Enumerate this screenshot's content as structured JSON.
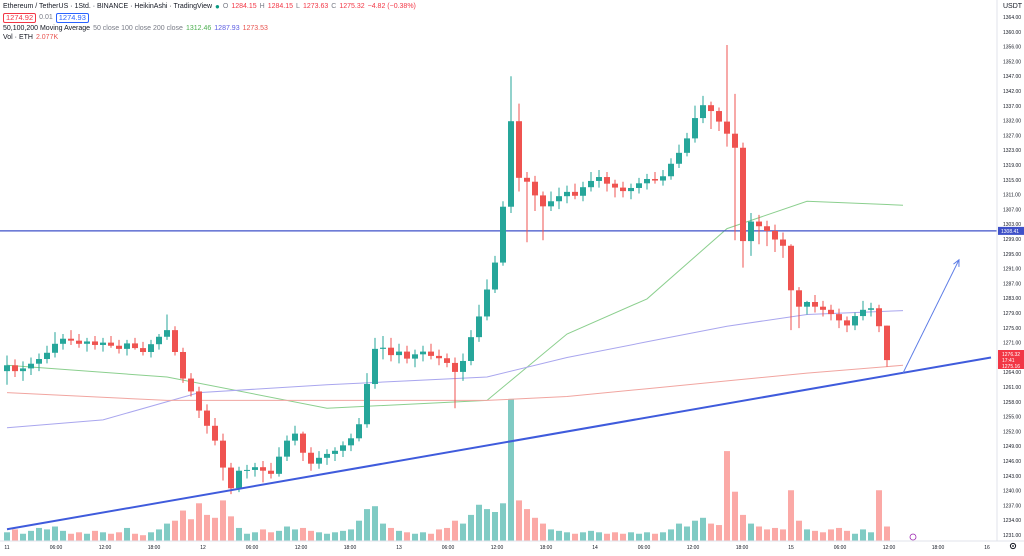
{
  "header": {
    "symbol_title": "Ethereum / TetherUS · 1Std. · BINANCE · HeikinAshi · TradingView",
    "o_label": "O",
    "o_value": "1284.15",
    "h_label": "H",
    "h_value": "1284.15",
    "l_label": "L",
    "l_value": "1273.63",
    "c_label": "C",
    "c_value": "1275.32",
    "change": "−4.82 (−0.38%)",
    "sell_price": "1274.92",
    "spread": "0.01",
    "buy_price": "1274.93",
    "ma_label": "50,100,200 Moving Average",
    "ma_params": "50 close 100 close 200 close",
    "ma50_value": "1312.46",
    "ma100_value": "1287.93",
    "ma200_value": "1273.53",
    "vol_label": "Vol · ETH",
    "vol_value": "2.077K"
  },
  "price_axis": {
    "currency": "USDT",
    "ticks": [
      "1364.00",
      "1360.00",
      "1356.00",
      "1352.00",
      "1347.00",
      "1342.00",
      "1337.00",
      "1332.00",
      "1327.00",
      "1323.00",
      "1319.00",
      "1315.00",
      "1311.00",
      "1307.00",
      "1303.00",
      "1299.00",
      "1295.00",
      "1291.00",
      "1287.00",
      "1283.00",
      "1279.00",
      "1275.00",
      "1271.00",
      "1267.00",
      "1264.00",
      "1261.00",
      "1258.00",
      "1255.00",
      "1252.00",
      "1249.00",
      "1246.00",
      "1243.00",
      "1240.00",
      "1237.00",
      "1234.00",
      "1231.00"
    ],
    "line_label": "1308.41",
    "price_tags": [
      "1276.32",
      "17:41",
      "1275.16"
    ]
  },
  "time_axis": {
    "ticks": [
      "11",
      "06:00",
      "12:00",
      "18:00",
      "12",
      "06:00",
      "12:00",
      "18:00",
      "13",
      "06:00",
      "12:00",
      "18:00",
      "14",
      "06:00",
      "12:00",
      "18:00",
      "15",
      "06:00",
      "12:00",
      "18:00",
      "16"
    ]
  },
  "footer": {
    "gear_icon": "gear-icon"
  },
  "colors": {
    "up": "#26a69a",
    "down": "#ef5350",
    "vol_up": "#80cbc4",
    "vol_down": "#fba9a6",
    "ma50": "#8bcf8e",
    "ma100": "#a9a6ee",
    "ma200": "#f1a5a0",
    "trendline": "#3f5bdc",
    "hline": "#3f51c8"
  },
  "chart_data": {
    "type": "candlestick",
    "title": "Ethereum / TetherUS · 1Std. · BINANCE · HeikinAshi",
    "ylabel": "USDT",
    "ylim": [
      1229,
      1366
    ],
    "candles": [
      {
        "o": 1272.5,
        "h": 1276.5,
        "l": 1269.0,
        "c": 1274.0,
        "v": 6
      },
      {
        "o": 1274.0,
        "h": 1275.5,
        "l": 1271.0,
        "c": 1272.5,
        "v": 8
      },
      {
        "o": 1272.5,
        "h": 1275.0,
        "l": 1270.0,
        "c": 1273.2,
        "v": 5
      },
      {
        "o": 1273.2,
        "h": 1276.0,
        "l": 1271.5,
        "c": 1274.4,
        "v": 7
      },
      {
        "o": 1274.4,
        "h": 1277.0,
        "l": 1272.5,
        "c": 1275.6,
        "v": 9
      },
      {
        "o": 1275.6,
        "h": 1279.0,
        "l": 1274.5,
        "c": 1277.2,
        "v": 8
      },
      {
        "o": 1277.2,
        "h": 1282.5,
        "l": 1276.0,
        "c": 1279.5,
        "v": 10
      },
      {
        "o": 1279.5,
        "h": 1282.0,
        "l": 1278.0,
        "c": 1280.8,
        "v": 7
      },
      {
        "o": 1280.8,
        "h": 1283.0,
        "l": 1279.2,
        "c": 1280.3,
        "v": 5
      },
      {
        "o": 1280.3,
        "h": 1282.0,
        "l": 1278.5,
        "c": 1279.5,
        "v": 6
      },
      {
        "o": 1279.5,
        "h": 1281.0,
        "l": 1277.5,
        "c": 1280.1,
        "v": 5
      },
      {
        "o": 1280.1,
        "h": 1281.5,
        "l": 1278.0,
        "c": 1279.2,
        "v": 7
      },
      {
        "o": 1279.2,
        "h": 1281.0,
        "l": 1277.5,
        "c": 1279.8,
        "v": 6
      },
      {
        "o": 1279.8,
        "h": 1281.5,
        "l": 1278.5,
        "c": 1279.0,
        "v": 5
      },
      {
        "o": 1279.0,
        "h": 1280.5,
        "l": 1277.0,
        "c": 1278.2,
        "v": 6
      },
      {
        "o": 1278.2,
        "h": 1280.5,
        "l": 1276.5,
        "c": 1279.6,
        "v": 9
      },
      {
        "o": 1279.6,
        "h": 1281.0,
        "l": 1278.0,
        "c": 1278.4,
        "v": 5
      },
      {
        "o": 1278.4,
        "h": 1280.0,
        "l": 1276.5,
        "c": 1277.4,
        "v": 4
      },
      {
        "o": 1277.4,
        "h": 1280.5,
        "l": 1276.0,
        "c": 1279.4,
        "v": 6
      },
      {
        "o": 1279.4,
        "h": 1282.0,
        "l": 1278.0,
        "c": 1281.3,
        "v": 8
      },
      {
        "o": 1281.3,
        "h": 1287.0,
        "l": 1280.5,
        "c": 1283.0,
        "v": 12
      },
      {
        "o": 1283.0,
        "h": 1284.0,
        "l": 1276.5,
        "c": 1277.4,
        "v": 14
      },
      {
        "o": 1277.4,
        "h": 1278.5,
        "l": 1269.5,
        "c": 1270.6,
        "v": 21
      },
      {
        "o": 1270.6,
        "h": 1272.0,
        "l": 1266.0,
        "c": 1267.3,
        "v": 15
      },
      {
        "o": 1267.3,
        "h": 1268.5,
        "l": 1260.5,
        "c": 1262.4,
        "v": 26
      },
      {
        "o": 1262.4,
        "h": 1264.0,
        "l": 1256.5,
        "c": 1258.5,
        "v": 18
      },
      {
        "o": 1258.5,
        "h": 1260.5,
        "l": 1253.5,
        "c": 1254.7,
        "v": 16
      },
      {
        "o": 1254.7,
        "h": 1256.5,
        "l": 1244.5,
        "c": 1247.8,
        "v": 28
      },
      {
        "o": 1247.8,
        "h": 1249.0,
        "l": 1241.0,
        "c": 1242.5,
        "v": 17
      },
      {
        "o": 1242.5,
        "h": 1248.0,
        "l": 1241.5,
        "c": 1247.0,
        "v": 9
      },
      {
        "o": 1247.0,
        "h": 1248.5,
        "l": 1245.0,
        "c": 1247.2,
        "v": 5
      },
      {
        "o": 1247.2,
        "h": 1249.0,
        "l": 1245.5,
        "c": 1247.9,
        "v": 6
      },
      {
        "o": 1247.9,
        "h": 1249.5,
        "l": 1244.0,
        "c": 1247.0,
        "v": 8
      },
      {
        "o": 1247.0,
        "h": 1249.0,
        "l": 1245.0,
        "c": 1246.2,
        "v": 6
      },
      {
        "o": 1246.2,
        "h": 1253.0,
        "l": 1245.5,
        "c": 1250.6,
        "v": 7
      },
      {
        "o": 1250.6,
        "h": 1256.0,
        "l": 1249.5,
        "c": 1254.7,
        "v": 10
      },
      {
        "o": 1254.7,
        "h": 1258.5,
        "l": 1253.5,
        "c": 1256.5,
        "v": 8
      },
      {
        "o": 1256.5,
        "h": 1257.0,
        "l": 1249.5,
        "c": 1251.6,
        "v": 9
      },
      {
        "o": 1251.6,
        "h": 1253.0,
        "l": 1247.0,
        "c": 1248.8,
        "v": 7
      },
      {
        "o": 1248.8,
        "h": 1252.0,
        "l": 1247.5,
        "c": 1250.3,
        "v": 6
      },
      {
        "o": 1250.3,
        "h": 1252.5,
        "l": 1248.5,
        "c": 1251.3,
        "v": 5
      },
      {
        "o": 1251.3,
        "h": 1253.0,
        "l": 1249.5,
        "c": 1252.1,
        "v": 6
      },
      {
        "o": 1252.1,
        "h": 1254.5,
        "l": 1250.5,
        "c": 1253.5,
        "v": 7
      },
      {
        "o": 1253.5,
        "h": 1256.5,
        "l": 1252.0,
        "c": 1255.3,
        "v": 8
      },
      {
        "o": 1255.3,
        "h": 1260.5,
        "l": 1254.5,
        "c": 1258.9,
        "v": 14
      },
      {
        "o": 1258.9,
        "h": 1272.0,
        "l": 1258.0,
        "c": 1269.2,
        "v": 22
      },
      {
        "o": 1269.2,
        "h": 1281.0,
        "l": 1268.0,
        "c": 1278.2,
        "v": 24
      },
      {
        "o": 1278.2,
        "h": 1281.5,
        "l": 1275.5,
        "c": 1278.5,
        "v": 12
      },
      {
        "o": 1278.5,
        "h": 1281.0,
        "l": 1275.0,
        "c": 1276.6,
        "v": 9
      },
      {
        "o": 1276.6,
        "h": 1279.5,
        "l": 1274.5,
        "c": 1277.5,
        "v": 7
      },
      {
        "o": 1277.5,
        "h": 1279.0,
        "l": 1274.5,
        "c": 1275.7,
        "v": 6
      },
      {
        "o": 1275.7,
        "h": 1278.0,
        "l": 1273.5,
        "c": 1276.8,
        "v": 5
      },
      {
        "o": 1276.8,
        "h": 1279.0,
        "l": 1275.0,
        "c": 1277.5,
        "v": 6
      },
      {
        "o": 1277.5,
        "h": 1279.5,
        "l": 1275.5,
        "c": 1276.4,
        "v": 5
      },
      {
        "o": 1276.4,
        "h": 1278.0,
        "l": 1274.0,
        "c": 1275.8,
        "v": 8
      },
      {
        "o": 1275.8,
        "h": 1277.0,
        "l": 1273.5,
        "c": 1274.6,
        "v": 9
      },
      {
        "o": 1274.6,
        "h": 1276.0,
        "l": 1263.0,
        "c": 1272.3,
        "v": 14
      },
      {
        "o": 1272.3,
        "h": 1277.0,
        "l": 1270.0,
        "c": 1275.1,
        "v": 12
      },
      {
        "o": 1275.1,
        "h": 1283.0,
        "l": 1274.0,
        "c": 1281.2,
        "v": 18
      },
      {
        "o": 1281.2,
        "h": 1289.5,
        "l": 1280.0,
        "c": 1286.5,
        "v": 25
      },
      {
        "o": 1286.5,
        "h": 1296.0,
        "l": 1285.5,
        "c": 1293.4,
        "v": 22
      },
      {
        "o": 1293.4,
        "h": 1302.0,
        "l": 1292.5,
        "c": 1300.3,
        "v": 20
      },
      {
        "o": 1300.3,
        "h": 1316.0,
        "l": 1299.5,
        "c": 1314.6,
        "v": 26
      },
      {
        "o": 1314.6,
        "h": 1348.0,
        "l": 1313.0,
        "c": 1336.5,
        "v": 98
      },
      {
        "o": 1336.5,
        "h": 1341.0,
        "l": 1318.5,
        "c": 1322.0,
        "v": 28
      },
      {
        "o": 1322.0,
        "h": 1323.5,
        "l": 1305.5,
        "c": 1321.0,
        "v": 22
      },
      {
        "o": 1321.0,
        "h": 1322.5,
        "l": 1313.5,
        "c": 1317.5,
        "v": 16
      },
      {
        "o": 1317.5,
        "h": 1318.5,
        "l": 1306.0,
        "c": 1314.7,
        "v": 12
      },
      {
        "o": 1314.7,
        "h": 1318.5,
        "l": 1313.5,
        "c": 1316.0,
        "v": 8
      },
      {
        "o": 1316.0,
        "h": 1319.5,
        "l": 1314.0,
        "c": 1317.3,
        "v": 7
      },
      {
        "o": 1317.3,
        "h": 1320.0,
        "l": 1315.5,
        "c": 1318.4,
        "v": 6
      },
      {
        "o": 1318.4,
        "h": 1320.5,
        "l": 1316.5,
        "c": 1317.4,
        "v": 5
      },
      {
        "o": 1317.4,
        "h": 1321.0,
        "l": 1316.0,
        "c": 1319.6,
        "v": 6
      },
      {
        "o": 1319.6,
        "h": 1323.5,
        "l": 1318.5,
        "c": 1321.2,
        "v": 7
      },
      {
        "o": 1321.2,
        "h": 1324.0,
        "l": 1319.5,
        "c": 1322.2,
        "v": 6
      },
      {
        "o": 1322.2,
        "h": 1323.5,
        "l": 1318.5,
        "c": 1320.5,
        "v": 5
      },
      {
        "o": 1320.5,
        "h": 1321.5,
        "l": 1317.0,
        "c": 1319.5,
        "v": 6
      },
      {
        "o": 1319.5,
        "h": 1321.0,
        "l": 1317.0,
        "c": 1318.6,
        "v": 5
      },
      {
        "o": 1318.6,
        "h": 1320.5,
        "l": 1316.5,
        "c": 1319.4,
        "v": 6
      },
      {
        "o": 1319.4,
        "h": 1322.0,
        "l": 1318.0,
        "c": 1320.6,
        "v": 5
      },
      {
        "o": 1320.6,
        "h": 1323.0,
        "l": 1319.0,
        "c": 1321.7,
        "v": 6
      },
      {
        "o": 1321.7,
        "h": 1323.5,
        "l": 1320.5,
        "c": 1321.3,
        "v": 5
      },
      {
        "o": 1321.3,
        "h": 1324.0,
        "l": 1320.0,
        "c": 1322.4,
        "v": 6
      },
      {
        "o": 1322.4,
        "h": 1327.0,
        "l": 1321.5,
        "c": 1325.6,
        "v": 8
      },
      {
        "o": 1325.6,
        "h": 1330.5,
        "l": 1324.5,
        "c": 1328.4,
        "v": 12
      },
      {
        "o": 1328.4,
        "h": 1333.5,
        "l": 1327.5,
        "c": 1332.1,
        "v": 10
      },
      {
        "o": 1332.1,
        "h": 1340.5,
        "l": 1331.0,
        "c": 1337.3,
        "v": 14
      },
      {
        "o": 1337.3,
        "h": 1343.0,
        "l": 1336.0,
        "c": 1340.6,
        "v": 16
      },
      {
        "o": 1340.6,
        "h": 1341.5,
        "l": 1334.5,
        "c": 1339.1,
        "v": 12
      },
      {
        "o": 1339.1,
        "h": 1340.0,
        "l": 1334.0,
        "c": 1336.4,
        "v": 11
      },
      {
        "o": 1336.4,
        "h": 1356.0,
        "l": 1330.0,
        "c": 1333.3,
        "v": 62
      },
      {
        "o": 1333.3,
        "h": 1343.5,
        "l": 1306.0,
        "c": 1329.7,
        "v": 34
      },
      {
        "o": 1329.7,
        "h": 1331.0,
        "l": 1299.0,
        "c": 1305.8,
        "v": 18
      },
      {
        "o": 1305.8,
        "h": 1313.0,
        "l": 1302.0,
        "c": 1310.8,
        "v": 12
      },
      {
        "o": 1310.8,
        "h": 1312.5,
        "l": 1305.0,
        "c": 1309.6,
        "v": 10
      },
      {
        "o": 1309.6,
        "h": 1311.0,
        "l": 1304.5,
        "c": 1308.4,
        "v": 8
      },
      {
        "o": 1308.4,
        "h": 1310.0,
        "l": 1303.0,
        "c": 1306.2,
        "v": 9
      },
      {
        "o": 1306.2,
        "h": 1308.0,
        "l": 1301.5,
        "c": 1304.6,
        "v": 8
      },
      {
        "o": 1304.6,
        "h": 1305.0,
        "l": 1283.0,
        "c": 1293.2,
        "v": 35
      },
      {
        "o": 1293.2,
        "h": 1294.0,
        "l": 1283.5,
        "c": 1289.0,
        "v": 14
      },
      {
        "o": 1289.0,
        "h": 1290.5,
        "l": 1287.0,
        "c": 1290.2,
        "v": 8
      },
      {
        "o": 1290.2,
        "h": 1292.0,
        "l": 1287.5,
        "c": 1289.0,
        "v": 7
      },
      {
        "o": 1289.0,
        "h": 1290.5,
        "l": 1286.5,
        "c": 1288.2,
        "v": 6
      },
      {
        "o": 1288.2,
        "h": 1289.5,
        "l": 1285.5,
        "c": 1287.1,
        "v": 8
      },
      {
        "o": 1287.1,
        "h": 1288.5,
        "l": 1283.5,
        "c": 1285.5,
        "v": 9
      },
      {
        "o": 1285.5,
        "h": 1286.5,
        "l": 1282.5,
        "c": 1284.2,
        "v": 7
      },
      {
        "o": 1284.2,
        "h": 1287.5,
        "l": 1283.0,
        "c": 1286.6,
        "v": 5
      },
      {
        "o": 1286.6,
        "h": 1290.5,
        "l": 1285.5,
        "c": 1288.2,
        "v": 8
      },
      {
        "o": 1288.2,
        "h": 1290.0,
        "l": 1286.5,
        "c": 1288.6,
        "v": 6
      },
      {
        "o": 1288.6,
        "h": 1289.5,
        "l": 1282.5,
        "c": 1284.0,
        "v": 35
      },
      {
        "o": 1284.15,
        "h": 1284.15,
        "l": 1273.63,
        "c": 1275.32,
        "v": 10
      }
    ],
    "moving_averages": [
      {
        "name": "MA50",
        "color": "#8bcf8e",
        "points": [
          [
            0,
            1274
          ],
          [
            20,
            1271
          ],
          [
            40,
            1263
          ],
          [
            60,
            1265
          ],
          [
            70,
            1282
          ],
          [
            80,
            1291
          ],
          [
            90,
            1309
          ],
          [
            100,
            1316
          ],
          [
            112,
            1315
          ]
        ]
      },
      {
        "name": "MA100",
        "color": "#a9a6ee",
        "points": [
          [
            0,
            1258
          ],
          [
            12,
            1260
          ],
          [
            24,
            1267
          ],
          [
            40,
            1269
          ],
          [
            60,
            1271
          ],
          [
            70,
            1276
          ],
          [
            80,
            1280
          ],
          [
            90,
            1284
          ],
          [
            100,
            1287
          ],
          [
            112,
            1288
          ]
        ]
      },
      {
        "name": "MA200",
        "color": "#f1a5a0",
        "points": [
          [
            0,
            1267
          ],
          [
            20,
            1265
          ],
          [
            40,
            1265
          ],
          [
            60,
            1265
          ],
          [
            70,
            1266
          ],
          [
            80,
            1268
          ],
          [
            90,
            1270
          ],
          [
            100,
            1272
          ],
          [
            112,
            1274
          ]
        ]
      }
    ],
    "horizontal_line": 1308.41,
    "trendline": {
      "from": [
        0,
        1232
      ],
      "to": [
        123,
        1276
      ]
    },
    "arrow": {
      "from": [
        112,
        1272
      ],
      "to": [
        119,
        1301
      ]
    }
  }
}
